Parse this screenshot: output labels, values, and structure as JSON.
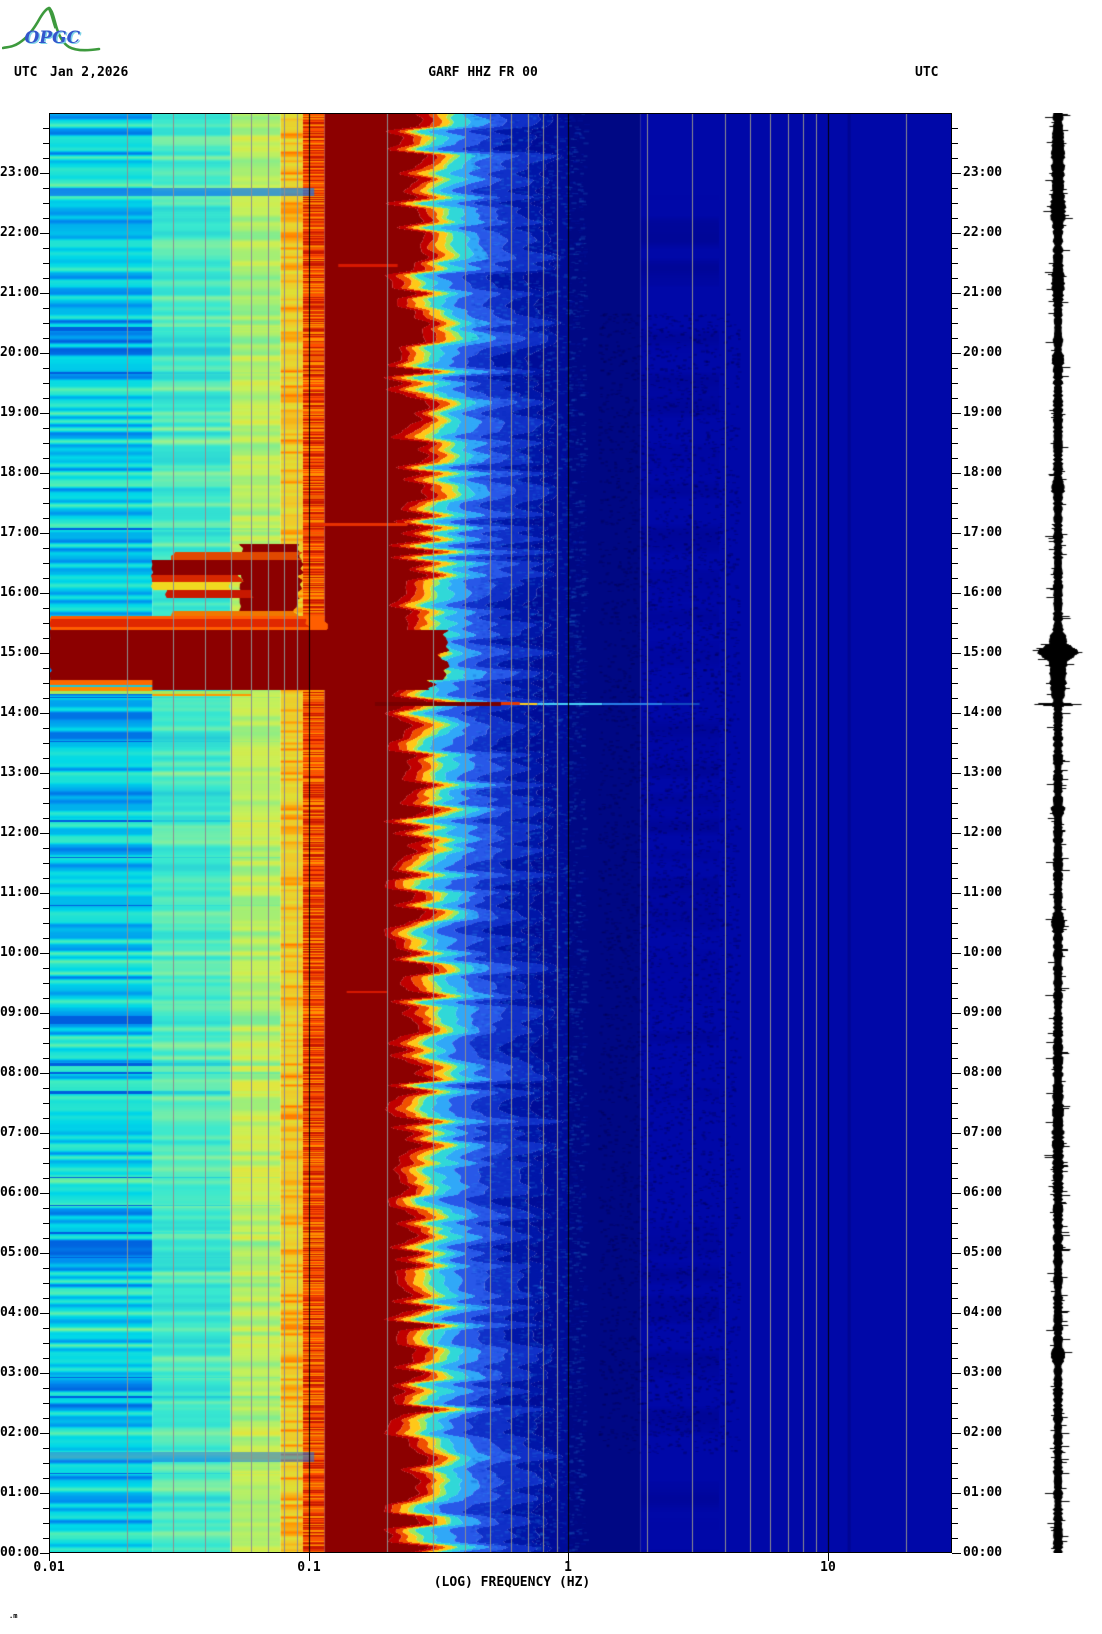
{
  "header": {
    "utc_left": "UTC",
    "date": "Jan 2,2026",
    "title": "GARF HHZ FR 00",
    "utc_right": "UTC"
  },
  "logo": {
    "text": "OPGC",
    "text_color": "#3355cc",
    "shadow_color": "#7fd4e8",
    "curve_color": "#3d9a3d"
  },
  "footer_mark": ".m",
  "chart_data": {
    "type": "heatmap",
    "title": "GARF HHZ FR 00",
    "subtitle": "spectrogram, one day, station GARF channel HHZ network FR loc 00",
    "xlabel": "(LOG) FREQUENCY (HZ)",
    "x_scale": "log",
    "x_range_hz": [
      0.01,
      30
    ],
    "x_ticks": [
      {
        "f": 0.01,
        "label": "0.01"
      },
      {
        "f": 0.1,
        "label": "0.1"
      },
      {
        "f": 1,
        "label": "1"
      },
      {
        "f": 10,
        "label": "10"
      }
    ],
    "y_axis_label_left": "UTC",
    "y_axis_label_right": "UTC",
    "y_range_hours": [
      0,
      24
    ],
    "hour_labels": [
      "00:00",
      "01:00",
      "02:00",
      "03:00",
      "04:00",
      "05:00",
      "06:00",
      "07:00",
      "08:00",
      "09:00",
      "10:00",
      "11:00",
      "12:00",
      "13:00",
      "14:00",
      "15:00",
      "16:00",
      "17:00",
      "18:00",
      "19:00",
      "20:00",
      "21:00",
      "22:00",
      "23:00"
    ],
    "minor_gridlines_hz": [
      0.02,
      0.03,
      0.04,
      0.05,
      0.06,
      0.07,
      0.08,
      0.09,
      0.2,
      0.3,
      0.4,
      0.5,
      0.6,
      0.7,
      0.8,
      0.9,
      2,
      3,
      4,
      5,
      6,
      7,
      8,
      9,
      20
    ],
    "major_gridlines_hz": [
      0.1,
      1,
      10
    ],
    "gridline_minor_color": "#8f8f8f",
    "gridline_major_color": "#000000",
    "base_profile": [
      {
        "name": "low-stripes",
        "f0": 0.01,
        "f1": 0.025,
        "noise": "A",
        "ramp": [
          [
            0,
            "#0050D8"
          ],
          [
            0.25,
            "#0090F0"
          ],
          [
            0.5,
            "#00D8E8"
          ],
          [
            0.78,
            "#40ECC0"
          ],
          [
            1,
            "#A8F078"
          ]
        ]
      },
      {
        "name": "mid-cyan",
        "f0": 0.025,
        "f1": 0.05,
        "noise": "B",
        "ramp": [
          [
            0,
            "#10B0E0"
          ],
          [
            0.5,
            "#38E8D0"
          ],
          [
            0.8,
            "#90F098"
          ],
          [
            1,
            "#D8F050"
          ]
        ]
      },
      {
        "name": "green-yellow",
        "f0": 0.05,
        "f1": 0.078,
        "noise": "C",
        "ramp": [
          [
            0,
            "#38E0C8"
          ],
          [
            0.4,
            "#80EC90"
          ],
          [
            0.7,
            "#C8F058"
          ],
          [
            1,
            "#F0E030"
          ]
        ]
      },
      {
        "name": "yellow-column",
        "f0": 0.078,
        "f1": 0.095,
        "noise": "D",
        "ramp": [
          [
            0,
            "#D8E838"
          ],
          [
            0.6,
            "#F0C828"
          ],
          [
            0.85,
            "#FF9800"
          ],
          [
            1,
            "#FF6000"
          ]
        ]
      },
      {
        "name": "orange-red-column",
        "f0": 0.095,
        "f1": 0.115,
        "noise": "E",
        "palette": [
          "#FF9000",
          "#F06000",
          "#E03000",
          "#C81800",
          "#FF4E00"
        ]
      }
    ],
    "microseism_band": {
      "f0": 0.115,
      "end_center_hz": 0.24,
      "end_jitter_decades": 0.09,
      "color": "#8C0000"
    },
    "transition_segments": [
      [
        "#C00000",
        0.04
      ],
      [
        "#F05000",
        0.03
      ],
      [
        "#FFC818",
        0.03
      ],
      [
        "#A0E858",
        0.02
      ],
      [
        "#30D8D8",
        0.05
      ],
      [
        "#30A8F8",
        0.06
      ],
      [
        "#2858E8",
        0.09
      ],
      [
        "#1030C8",
        0.12
      ]
    ],
    "high_freq": {
      "navy_dark": "#000884",
      "navy": "#0008A8",
      "dark_until_hz": 1.9,
      "dark_column_hz": 12
    },
    "events": [
      {
        "t0": 15.9,
        "t1": 16.82,
        "f0": 0.055,
        "f1": 0.092,
        "color": "#8C0000",
        "jitter": 2
      },
      {
        "t0": 16.55,
        "t1": 16.68,
        "f0": 0.03,
        "f1": 0.092,
        "color": "#E04800",
        "jitter": 2
      },
      {
        "t0": 16.3,
        "t1": 16.55,
        "f0": 0.025,
        "f1": 0.092,
        "color": "#8C0000",
        "jitter": 2
      },
      {
        "t0": 16.18,
        "t1": 16.3,
        "f0": 0.025,
        "f1": 0.055,
        "color": "#D82800",
        "jitter": 2
      },
      {
        "t0": 16.05,
        "t1": 16.18,
        "f0": 0.025,
        "f1": 0.05,
        "color": "#F0D820",
        "jitter": 2
      },
      {
        "t0": 15.92,
        "t1": 16.05,
        "f0": 0.028,
        "f1": 0.06,
        "color": "#C81800",
        "jitter": 2
      },
      {
        "t0": 15.7,
        "t1": 15.92,
        "f0": 0.055,
        "f1": 0.09,
        "color": "#8C0000",
        "jitter": 2
      },
      {
        "t0": 15.62,
        "t1": 15.7,
        "f0": 0.03,
        "f1": 0.09,
        "color": "#F07800",
        "jitter": 2
      },
      {
        "t0": 15.38,
        "t1": 15.62,
        "f0": 0.01,
        "f1": 0.115,
        "color": "#FF5E00",
        "jitter": 2
      },
      {
        "t0": 15.44,
        "t1": 15.56,
        "f0": 0.01,
        "f1": 0.1,
        "color": "#E02800",
        "jitter": 2
      },
      {
        "t0": 14.55,
        "t1": 15.38,
        "f0": 0.01,
        "f1": 0.33,
        "color": "#8C0000",
        "jitter": 3
      },
      {
        "t0": 14.38,
        "t1": 14.55,
        "f0": 0.025,
        "f1": 0.3,
        "color": "#8C0000",
        "jitter": 3
      },
      {
        "t0": 14.47,
        "t1": 14.55,
        "f0": 0.01,
        "f1": 0.025,
        "color": "#FF6A00"
      },
      {
        "t0": 14.43,
        "t1": 14.47,
        "f0": 0.01,
        "f1": 0.025,
        "color": "#20C8D8"
      },
      {
        "t0": 14.36,
        "t1": 14.43,
        "f0": 0.01,
        "f1": 0.025,
        "color": "#FF8C00"
      },
      {
        "t0": 14.32,
        "t1": 14.36,
        "f0": 0.01,
        "f1": 0.06,
        "color": "#A8E858"
      },
      {
        "t0": 14.29,
        "t1": 14.32,
        "f0": 0.025,
        "f1": 0.06,
        "color": "#FF9800"
      },
      {
        "t0": 14.12,
        "t1": 14.19,
        "f0": 0.18,
        "f1": 0.55,
        "color": "#780000"
      },
      {
        "t0": 14.13,
        "t1": 14.18,
        "f0": 0.55,
        "f1": 0.65,
        "color": "#E83800"
      },
      {
        "t0": 14.13,
        "t1": 14.17,
        "f0": 0.65,
        "f1": 0.76,
        "color": "#FFD020"
      },
      {
        "t0": 14.13,
        "t1": 14.17,
        "f0": 0.76,
        "f1": 1.35,
        "color": "#48D0F8"
      },
      {
        "t0": 14.13,
        "t1": 14.16,
        "f0": 1.35,
        "f1": 2.3,
        "color": "#2880E8"
      },
      {
        "t0": 14.14,
        "t1": 14.16,
        "f0": 2.3,
        "f1": 3.2,
        "color": "#1048C0"
      },
      {
        "t0": 22.62,
        "t1": 22.75,
        "f0": 0.01,
        "f1": 0.105,
        "color": "#1878E8",
        "alpha": 0.7
      },
      {
        "t0": 1.52,
        "t1": 1.68,
        "f0": 0.01,
        "f1": 0.105,
        "color": "#1878E8",
        "alpha": 0.55
      },
      {
        "t0": 21.44,
        "t1": 21.48,
        "f0": 0.13,
        "f1": 0.22,
        "color": "#D81800"
      },
      {
        "t0": 9.33,
        "t1": 9.37,
        "f0": 0.14,
        "f1": 0.2,
        "color": "#D81800"
      },
      {
        "t0": 17.12,
        "t1": 17.16,
        "f0": 0.1,
        "f1": 0.24,
        "color": "#E83000"
      }
    ],
    "trace": {
      "color": "#000000",
      "base_halfwidth": 3.2,
      "noise_halfwidth": 2.1,
      "spike_prob": 0.13,
      "events": [
        {
          "t": 15.03,
          "w": 0.12,
          "hw": 13
        },
        {
          "t": 14.85,
          "w": 0.3,
          "hw": 4
        },
        {
          "t": 15.28,
          "w": 0.08,
          "hw": 4
        },
        {
          "t": 14.15,
          "w": 0.02,
          "hw": 19
        },
        {
          "t": 14.45,
          "w": 0.2,
          "hw": 3
        },
        {
          "t": 23.2,
          "w": 0.6,
          "hw": 2
        },
        {
          "t": 22.4,
          "w": 0.25,
          "hw": 3
        },
        {
          "t": 21.2,
          "w": 0.3,
          "hw": 2
        },
        {
          "t": 19.9,
          "w": 0.08,
          "hw": 2.5
        },
        {
          "t": 17.75,
          "w": 0.08,
          "hw": 2.5
        },
        {
          "t": 12.4,
          "w": 0.08,
          "hw": 2.5
        },
        {
          "t": 10.5,
          "w": 0.12,
          "hw": 3
        },
        {
          "t": 7.0,
          "w": 0.9,
          "hw": 1.2
        },
        {
          "t": 3.3,
          "w": 0.1,
          "hw": 2
        }
      ]
    }
  }
}
